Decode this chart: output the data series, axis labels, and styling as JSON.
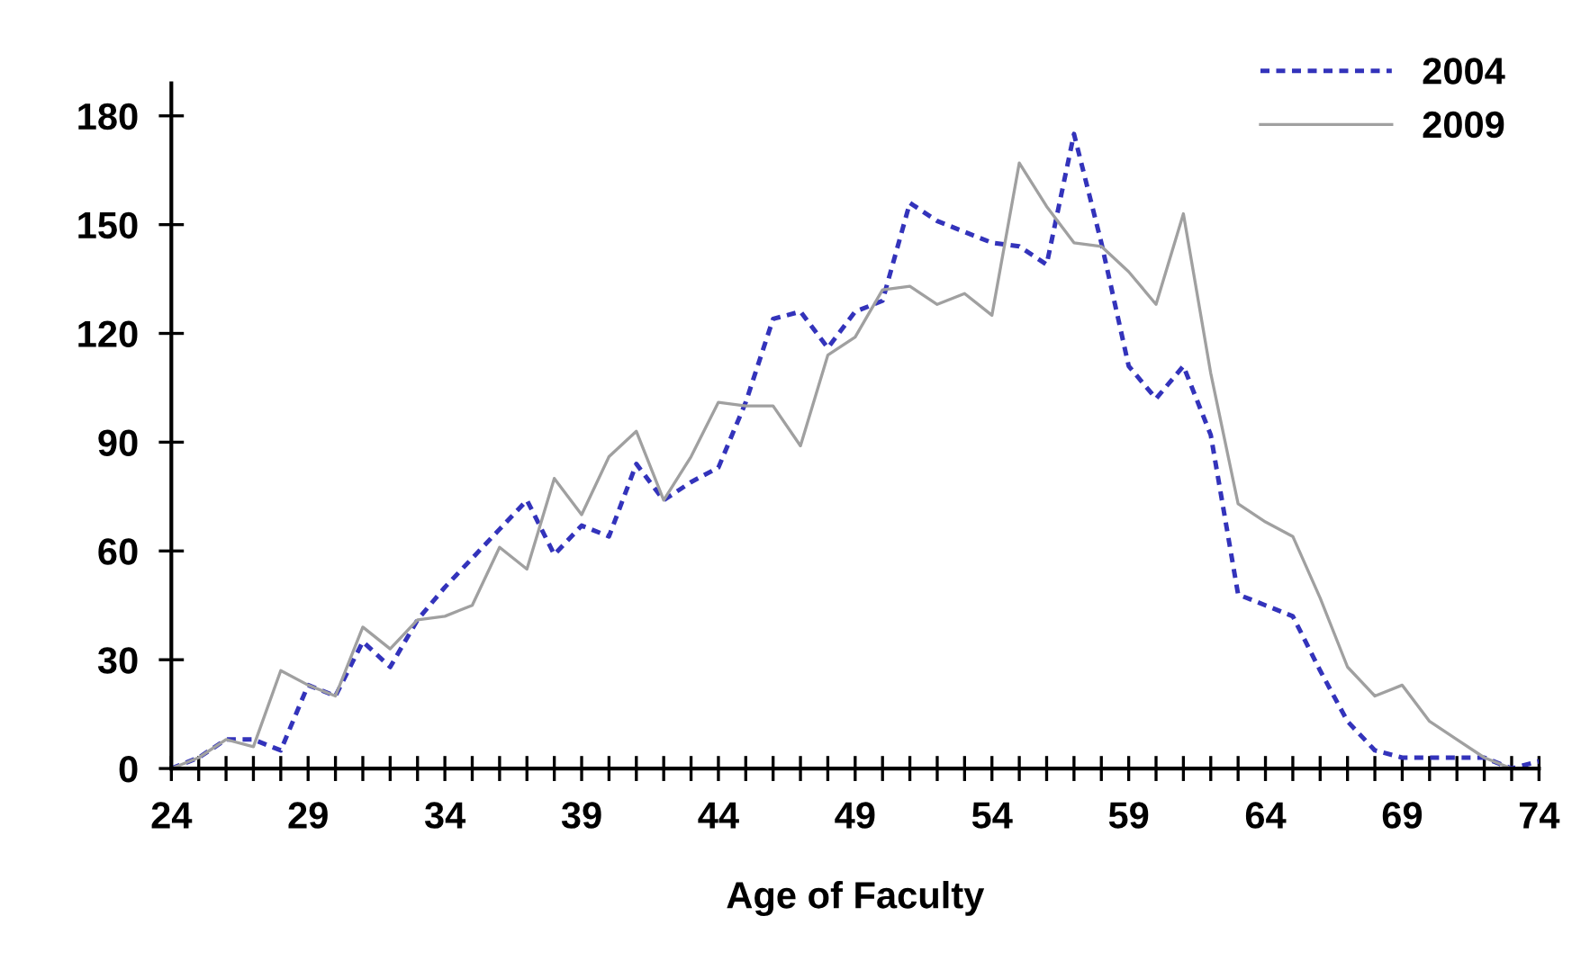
{
  "chart_data": {
    "type": "line",
    "xlabel": "Age of Faculty",
    "x": [
      24,
      25,
      26,
      27,
      28,
      29,
      30,
      31,
      32,
      33,
      34,
      35,
      36,
      37,
      38,
      39,
      40,
      41,
      42,
      43,
      44,
      45,
      46,
      47,
      48,
      49,
      50,
      51,
      52,
      53,
      54,
      55,
      56,
      57,
      58,
      59,
      60,
      61,
      62,
      63,
      64,
      65,
      66,
      67,
      68,
      69,
      70,
      71,
      72,
      73,
      74
    ],
    "series": [
      {
        "name": "2004",
        "color": "#3333bb",
        "line_style": "dashed",
        "values": [
          0,
          3,
          8,
          8,
          5,
          23,
          20,
          35,
          28,
          41,
          50,
          58,
          66,
          74,
          59,
          67,
          64,
          84,
          74,
          79,
          83,
          101,
          124,
          126,
          116,
          126,
          129,
          156,
          151,
          148,
          145,
          144,
          139,
          175,
          145,
          111,
          102,
          111,
          92,
          48,
          45,
          42,
          27,
          13,
          5,
          3,
          3,
          3,
          3,
          0,
          2
        ]
      },
      {
        "name": "2009",
        "color": "#a0a0a0",
        "line_style": "solid",
        "values": [
          0,
          3,
          8,
          6,
          27,
          23,
          20,
          39,
          33,
          41,
          42,
          45,
          61,
          55,
          80,
          70,
          86,
          93,
          74,
          86,
          101,
          100,
          100,
          89,
          114,
          119,
          132,
          133,
          128,
          131,
          125,
          167,
          155,
          145,
          144,
          137,
          128,
          153,
          109,
          73,
          68,
          64,
          47,
          28,
          20,
          23,
          13,
          8,
          3,
          0,
          null
        ]
      }
    ],
    "xlim": [
      24,
      74
    ],
    "xticks": [
      24,
      {
        "value": 25,
        "label": null
      },
      {
        "value": 26,
        "label": null
      },
      {
        "value": 27,
        "label": null
      },
      {
        "value": 28,
        "label": null
      },
      29,
      {
        "value": 30,
        "label": null
      },
      {
        "value": 31,
        "label": null
      },
      {
        "value": 32,
        "label": null
      },
      {
        "value": 33,
        "label": null
      },
      34,
      {
        "value": 35,
        "label": null
      },
      {
        "value": 36,
        "label": null
      },
      {
        "value": 37,
        "label": null
      },
      {
        "value": 38,
        "label": null
      },
      39,
      {
        "value": 40,
        "label": null
      },
      {
        "value": 41,
        "label": null
      },
      {
        "value": 42,
        "label": null
      },
      {
        "value": 43,
        "label": null
      },
      44,
      {
        "value": 45,
        "label": null
      },
      {
        "value": 46,
        "label": null
      },
      {
        "value": 47,
        "label": null
      },
      {
        "value": 48,
        "label": null
      },
      49,
      {
        "value": 50,
        "label": null
      },
      {
        "value": 51,
        "label": null
      },
      {
        "value": 52,
        "label": null
      },
      {
        "value": 53,
        "label": null
      },
      54,
      {
        "value": 55,
        "label": null
      },
      {
        "value": 56,
        "label": null
      },
      {
        "value": 57,
        "label": null
      },
      {
        "value": 58,
        "label": null
      },
      59,
      {
        "value": 60,
        "label": null
      },
      {
        "value": 61,
        "label": null
      },
      {
        "value": 62,
        "label": null
      },
      {
        "value": 63,
        "label": null
      },
      64,
      {
        "value": 65,
        "label": null
      },
      {
        "value": 66,
        "label": null
      },
      {
        "value": 67,
        "label": null
      },
      {
        "value": 68,
        "label": null
      },
      69,
      {
        "value": 70,
        "label": null
      },
      {
        "value": 71,
        "label": null
      },
      {
        "value": 72,
        "label": null
      },
      {
        "value": 73,
        "label": null
      },
      74
    ],
    "ylim": [
      0,
      189
    ],
    "yticks": [
      0,
      30,
      60,
      90,
      120,
      150,
      180
    ],
    "grid": false,
    "legend": "top right",
    "marker": "none"
  }
}
